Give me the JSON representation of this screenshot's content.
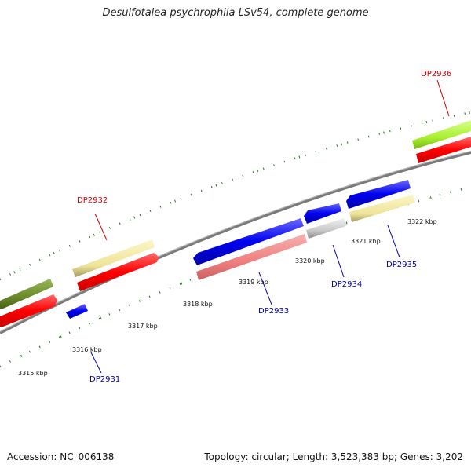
{
  "title": "Desulfotalea psychrophila LSv54, complete genome",
  "footer": {
    "accession": "Accession: NC_006138",
    "summary": "Topology: circular; Length: 3,523,383 bp; Genes: 3,202"
  },
  "colors": {
    "backbone": "#7a7a7a",
    "tick": "#1e7a1e",
    "label_forward": "#cc0000",
    "label_reverse": "#0000aa"
  },
  "kbp_labels": [
    {
      "id": "kbp-3315",
      "text": "3315 kbp"
    },
    {
      "id": "kbp-3316",
      "text": "3316 kbp"
    },
    {
      "id": "kbp-3317",
      "text": "3317 kbp"
    },
    {
      "id": "kbp-3318",
      "text": "3318 kbp"
    },
    {
      "id": "kbp-3319",
      "text": "3319 kbp"
    },
    {
      "id": "kbp-3320",
      "text": "3320 kbp"
    },
    {
      "id": "kbp-3321",
      "text": "3321 kbp"
    },
    {
      "id": "kbp-3322",
      "text": "3322 kbp"
    }
  ],
  "gene_labels": [
    {
      "id": "DP2931",
      "text": "DP2931",
      "strand": "reverse"
    },
    {
      "id": "DP2932",
      "text": "DP2932",
      "strand": "forward"
    },
    {
      "id": "DP2933",
      "text": "DP2933",
      "strand": "reverse"
    },
    {
      "id": "DP2934",
      "text": "DP2934",
      "strand": "reverse"
    },
    {
      "id": "DP2935",
      "text": "DP2935",
      "strand": "reverse"
    },
    {
      "id": "DP2936",
      "text": "DP2936",
      "strand": "forward"
    }
  ]
}
